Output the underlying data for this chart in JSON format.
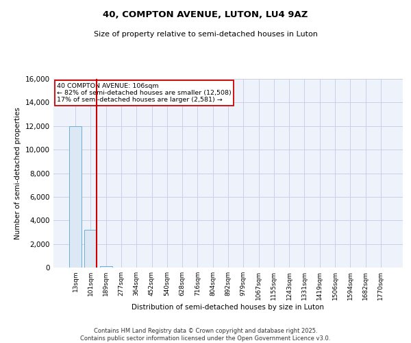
{
  "title1": "40, COMPTON AVENUE, LUTON, LU4 9AZ",
  "title2": "Size of property relative to semi-detached houses in Luton",
  "xlabel": "Distribution of semi-detached houses by size in Luton",
  "ylabel": "Number of semi-detached properties",
  "annotation_line1": "40 COMPTON AVENUE: 106sqm",
  "annotation_line2": "← 82% of semi-detached houses are smaller (12,508)",
  "annotation_line3": "17% of semi-detached houses are larger (2,581) →",
  "property_size": 106,
  "categories": [
    "13sqm",
    "101sqm",
    "189sqm",
    "277sqm",
    "364sqm",
    "452sqm",
    "540sqm",
    "628sqm",
    "716sqm",
    "804sqm",
    "892sqm",
    "979sqm",
    "1067sqm",
    "1155sqm",
    "1243sqm",
    "1331sqm",
    "1419sqm",
    "1506sqm",
    "1594sqm",
    "1682sqm",
    "1770sqm"
  ],
  "values": [
    12000,
    3200,
    130,
    20,
    5,
    2,
    1,
    1,
    0,
    0,
    0,
    0,
    0,
    0,
    0,
    0,
    0,
    0,
    0,
    0,
    0
  ],
  "bar_color": "#dce9f5",
  "bar_edge_color": "#6baed6",
  "red_line_color": "#cc0000",
  "background_color": "#eef2fb",
  "grid_color": "#c8d0e8",
  "ylim": [
    0,
    16000
  ],
  "yticks": [
    0,
    2000,
    4000,
    6000,
    8000,
    10000,
    12000,
    14000,
    16000
  ],
  "footer1": "Contains HM Land Registry data © Crown copyright and database right 2025.",
  "footer2": "Contains public sector information licensed under the Open Government Licence v3.0."
}
